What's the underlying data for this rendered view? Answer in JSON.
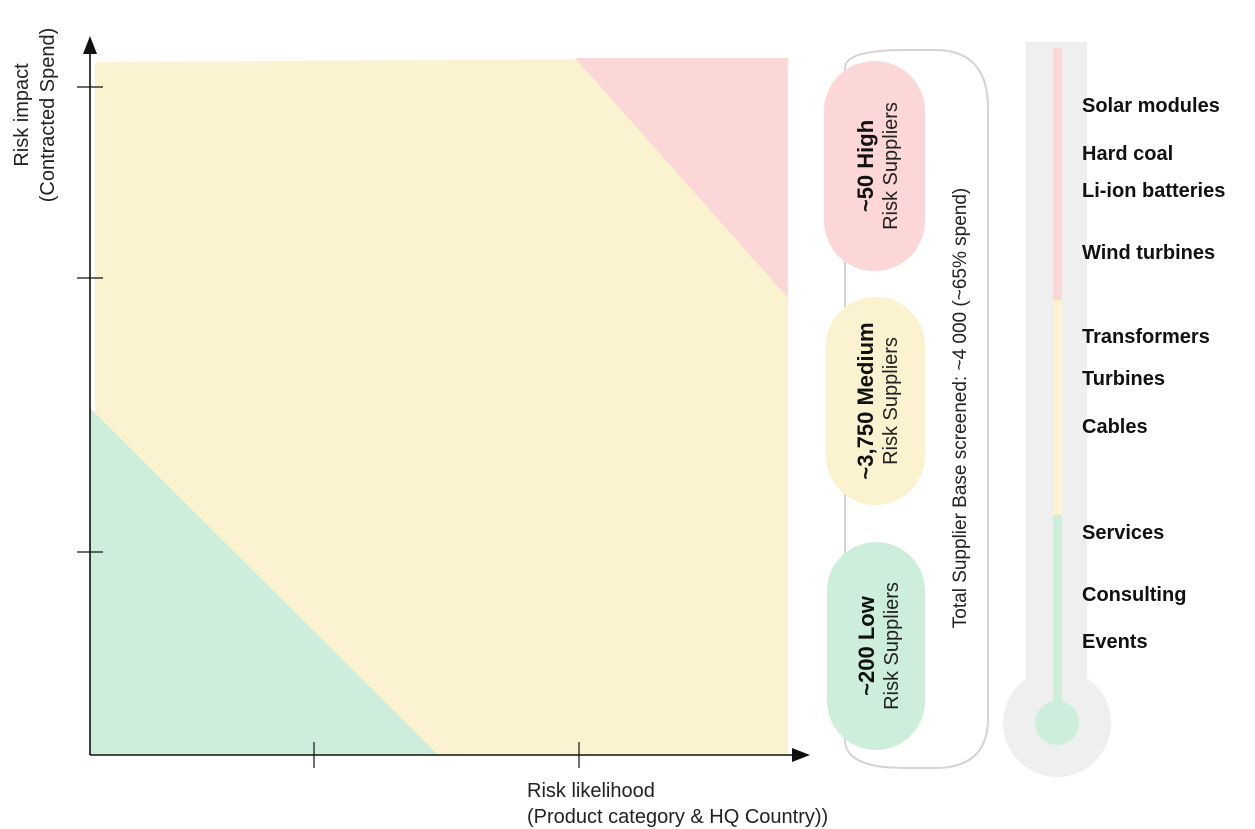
{
  "axes": {
    "y_label_line1": "Risk impact",
    "y_label_line2": "(Contracted Spend)",
    "x_label_line1": "Risk likelihood",
    "x_label_line2": "(Product category & HQ Country))"
  },
  "zones": [
    {
      "name": "high",
      "color": "#fcd7d7"
    },
    {
      "name": "medium",
      "color": "#fbf2cf"
    },
    {
      "name": "low",
      "color": "#cdeedb"
    }
  ],
  "pills": {
    "high": {
      "title": "~50 High",
      "sub": "Risk Suppliers",
      "color": "#fcd7d7"
    },
    "medium": {
      "title": "~3,750 Medium",
      "sub": "Risk Suppliers",
      "color": "#fbf2cf"
    },
    "low": {
      "title": "~200 Low",
      "sub": "Risk Suppliers",
      "color": "#cdeedb"
    }
  },
  "total_label": "Total Supplier Base screened: ~4 000 (~65% spend)",
  "thermometer": {
    "frame_color": "#efefef",
    "categories": [
      {
        "label": "Solar modules",
        "level": "high"
      },
      {
        "label": "Hard coal",
        "level": "high"
      },
      {
        "label": "Li-ion batteries",
        "level": "high"
      },
      {
        "label": "Wind turbines",
        "level": "high"
      },
      {
        "label": "Transformers",
        "level": "medium"
      },
      {
        "label": "Turbines",
        "level": "medium"
      },
      {
        "label": "Cables",
        "level": "medium"
      },
      {
        "label": "Services",
        "level": "low"
      },
      {
        "label": "Consulting",
        "level": "low"
      },
      {
        "label": "Events",
        "level": "low"
      }
    ]
  }
}
